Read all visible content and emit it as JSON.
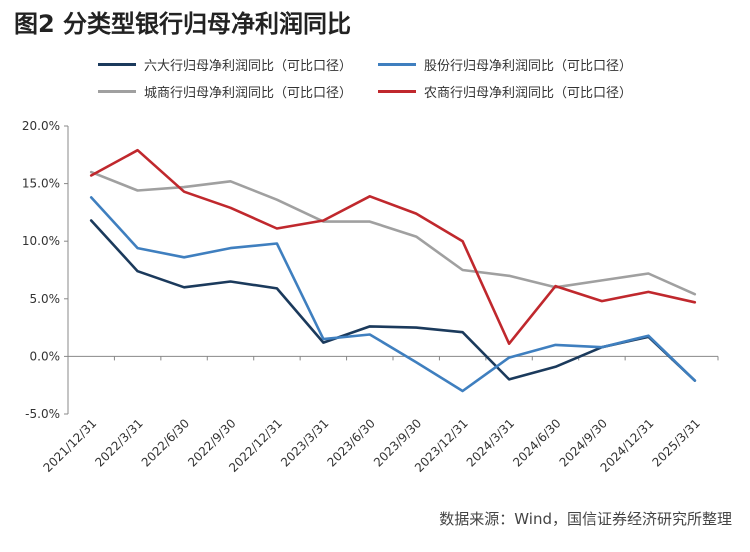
{
  "title": "图2  分类型银行归母净利润同比",
  "source": "数据来源：Wind，国信证券经济研究所整理",
  "chart_data": {
    "type": "line",
    "categories": [
      "2021/12/31",
      "2022/3/31",
      "2022/6/30",
      "2022/9/30",
      "2022/12/31",
      "2023/3/31",
      "2023/6/30",
      "2023/9/30",
      "2023/12/31",
      "2024/3/31",
      "2024/6/30",
      "2024/9/30",
      "2024/12/31",
      "2025/3/31"
    ],
    "ylim": [
      -5,
      20
    ],
    "yticks": [
      -5,
      0,
      5,
      10,
      15,
      20
    ],
    "ytick_labels": [
      "-5.0%",
      "0.0%",
      "5.0%",
      "10.0%",
      "15.0%",
      "20.0%"
    ],
    "legend_position": "top",
    "series": [
      {
        "name": "六大行归母净利润同比（可比口径）",
        "color": "#1b3a5c",
        "values": [
          11.8,
          7.4,
          6.0,
          6.5,
          5.9,
          1.2,
          2.6,
          2.5,
          2.1,
          -2.0,
          -0.9,
          0.8,
          1.7,
          -2.1
        ]
      },
      {
        "name": "股份行归母净利润同比（可比口径）",
        "color": "#3f7fbf",
        "values": [
          13.8,
          9.4,
          8.6,
          9.4,
          9.8,
          1.5,
          1.9,
          -0.5,
          -3.0,
          -0.1,
          1.0,
          0.8,
          1.8,
          -2.1
        ]
      },
      {
        "name": "城商行归母净利润同比（可比口径）",
        "color": "#a0a0a0",
        "values": [
          16.0,
          14.4,
          14.7,
          15.2,
          13.6,
          11.7,
          11.7,
          10.4,
          7.5,
          7.0,
          6.0,
          6.6,
          7.2,
          5.4
        ]
      },
      {
        "name": "农商行归母净利润同比（可比口径）",
        "color": "#c0282d",
        "values": [
          15.7,
          17.9,
          14.3,
          12.9,
          11.1,
          11.8,
          13.9,
          12.4,
          10.0,
          1.1,
          6.1,
          4.8,
          5.6,
          4.7
        ]
      }
    ]
  }
}
